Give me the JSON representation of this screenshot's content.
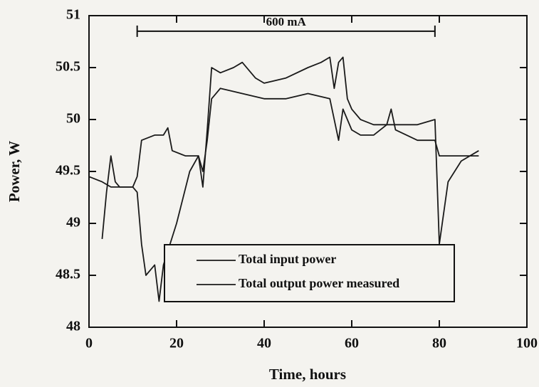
{
  "chart_data": {
    "type": "line",
    "xlabel": "Time, hours",
    "ylabel": "Power, W",
    "xlim": [
      0,
      100
    ],
    "ylim": [
      48,
      51
    ],
    "xticks": [
      0,
      20,
      40,
      60,
      80,
      100
    ],
    "yticks": [
      48,
      48.5,
      49,
      49.5,
      50,
      50.5,
      51
    ],
    "legend": "lower center",
    "annotations": [
      {
        "text": "600 mA",
        "x": [
          11,
          79
        ],
        "y": 50.85
      }
    ],
    "series": [
      {
        "name": "Total input power",
        "color": "#1a1a1a",
        "x": [
          3,
          4,
          5,
          6,
          7,
          10,
          11,
          12,
          15,
          17,
          18,
          19,
          22,
          25,
          26,
          27,
          28,
          30,
          33,
          35,
          38,
          40,
          45,
          50,
          53,
          55,
          56,
          57,
          58,
          59,
          60,
          62,
          65,
          70,
          75,
          79,
          80,
          82,
          85,
          89
        ],
        "values": [
          48.85,
          49.3,
          49.65,
          49.4,
          49.35,
          49.35,
          49.45,
          49.8,
          49.85,
          49.85,
          49.92,
          49.7,
          49.65,
          49.65,
          49.35,
          49.9,
          50.5,
          50.45,
          50.5,
          50.55,
          50.4,
          50.35,
          50.4,
          50.5,
          50.55,
          50.6,
          50.3,
          50.55,
          50.6,
          50.2,
          50.1,
          50.0,
          49.95,
          49.95,
          49.95,
          50.0,
          48.8,
          49.4,
          49.6,
          49.7
        ]
      },
      {
        "name": "Total output power measured",
        "color": "#1a1a1a",
        "x": [
          0,
          3,
          5,
          10,
          11,
          12,
          13,
          15,
          16,
          17,
          20,
          23,
          25,
          26,
          27,
          28,
          30,
          35,
          40,
          45,
          50,
          55,
          57,
          58,
          60,
          62,
          65,
          68,
          69,
          70,
          75,
          79,
          80,
          85,
          89
        ],
        "values": [
          49.45,
          49.4,
          49.35,
          49.35,
          49.3,
          48.8,
          48.5,
          48.6,
          48.25,
          48.6,
          49.0,
          49.5,
          49.65,
          49.5,
          49.8,
          50.2,
          50.3,
          50.25,
          50.2,
          50.2,
          50.25,
          50.2,
          49.8,
          50.1,
          49.9,
          49.85,
          49.85,
          49.95,
          50.1,
          49.9,
          49.8,
          49.8,
          49.65,
          49.65,
          49.65
        ]
      }
    ]
  }
}
